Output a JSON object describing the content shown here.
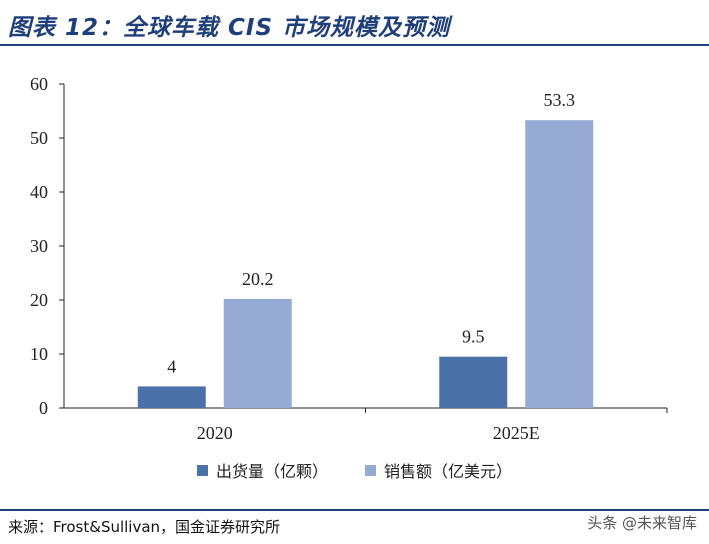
{
  "title": "图表 12：全球车载 CIS 市场规模及预测",
  "source": "来源：Frost&Sullivan，国金证券研究所",
  "watermark": "头条 @未来智库",
  "colors": {
    "title": "#1f3f7a",
    "series0": "#4a72a8",
    "series1": "#95abd3",
    "axis": "#222222"
  },
  "chart_data": {
    "type": "bar",
    "categories": [
      "2020",
      "2025E"
    ],
    "series": [
      {
        "name": "出货量（亿颗）",
        "values": [
          4,
          9.5
        ],
        "labels": [
          "4",
          "9.5"
        ]
      },
      {
        "name": "销售额（亿美元）",
        "values": [
          20.2,
          53.3
        ],
        "labels": [
          "20.2",
          "53.3"
        ]
      }
    ],
    "ylim": [
      0,
      60
    ],
    "yticks": [
      0,
      10,
      20,
      30,
      40,
      50,
      60
    ],
    "legend": "bottom",
    "grid": false
  }
}
